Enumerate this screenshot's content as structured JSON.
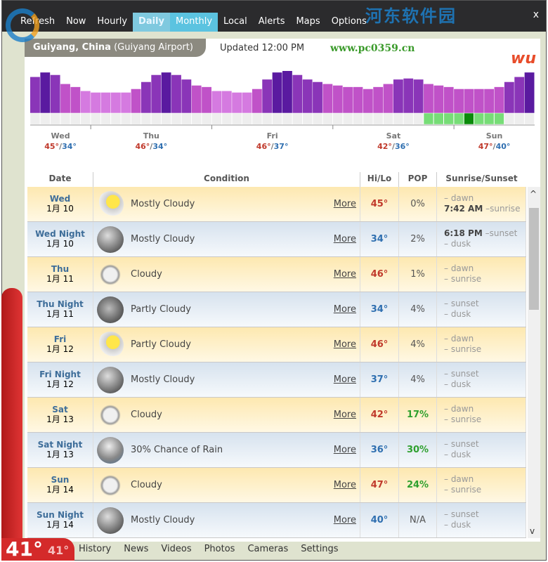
{
  "nav": {
    "items": [
      "Refresh",
      "Now",
      "Hourly",
      "Daily",
      "Monthly",
      "Local",
      "Alerts",
      "Maps",
      "Options"
    ],
    "active": "Monthly",
    "close": "x"
  },
  "watermark": {
    "text": "河东软件园",
    "url": "www.pc0359.cn"
  },
  "location": {
    "city": "Guiyang, China",
    "station": "(Guiyang Airport)",
    "updated": "Updated 12:00 PM",
    "logo": "wu"
  },
  "chart_data": {
    "type": "bar",
    "temperature_levels": [
      72,
      81,
      76,
      58,
      52,
      44,
      41,
      41,
      41,
      41,
      48,
      62,
      76,
      81,
      76,
      67,
      55,
      52,
      44,
      44,
      41,
      41,
      48,
      67,
      81,
      84,
      76,
      67,
      62,
      58,
      55,
      52,
      52,
      48,
      52,
      58,
      67,
      69,
      67,
      58,
      55,
      52,
      48,
      48,
      48,
      48,
      52,
      62,
      72,
      81
    ],
    "precip_levels": [
      0,
      0,
      0,
      0,
      0,
      0,
      0,
      0,
      0,
      0,
      0,
      0,
      0,
      0,
      0,
      0,
      0,
      0,
      0,
      0,
      0,
      0,
      0,
      0,
      0,
      0,
      0,
      0,
      0,
      0,
      0,
      0,
      0,
      0,
      0,
      0,
      0,
      0,
      0,
      1,
      1,
      1,
      1,
      2,
      1,
      1,
      1,
      0,
      0,
      0
    ],
    "days": [
      {
        "name": "Wed",
        "hi": "45°",
        "lo": "34°"
      },
      {
        "name": "Thu",
        "hi": "46°",
        "lo": "34°"
      },
      {
        "name": "Fri",
        "hi": "46°",
        "lo": "37°"
      },
      {
        "name": "Sat",
        "hi": "42°",
        "lo": "36°"
      },
      {
        "name": "Sun",
        "hi": "47°",
        "lo": "40°"
      }
    ],
    "colors": {
      "high": "#5a1aa0",
      "mid": "#c052c8",
      "low": "#d57ae0",
      "rain": "#77dd77",
      "rain_heavy": "#0a8a0a",
      "hi": "#c0392b",
      "lo": "#2f6fb0"
    }
  },
  "table": {
    "headers": [
      "Date",
      "Condition",
      "Hi/Lo",
      "POP",
      "Sunrise/Sunset"
    ],
    "more": "More",
    "rows": [
      {
        "kind": "day",
        "day": "Wed",
        "date": "1月 10",
        "icon": "sunny",
        "cond": "Mostly Cloudy",
        "temp": "45°",
        "pop": "0%",
        "sun1": "– dawn",
        "sun2t": "7:42 AM",
        "sun2": " –sunrise"
      },
      {
        "kind": "night",
        "day": "Wed Night",
        "date": "1月 10",
        "icon": "night",
        "cond": "Mostly Cloudy",
        "temp": "34°",
        "pop": "2%",
        "sun1t": "6:18 PM",
        "sun1": " –sunset",
        "sun2": "– dusk"
      },
      {
        "kind": "day",
        "day": "Thu",
        "date": "1月 11",
        "icon": "cloud",
        "cond": "Cloudy",
        "temp": "46°",
        "pop": "1%",
        "sun1": "– dawn",
        "sun2": "– sunrise"
      },
      {
        "kind": "night",
        "day": "Thu Night",
        "date": "1月 11",
        "icon": "moon",
        "cond": "Partly Cloudy",
        "temp": "34°",
        "pop": "4%",
        "sun1": "– sunset",
        "sun2": "– dusk"
      },
      {
        "kind": "day",
        "day": "Fri",
        "date": "1月 12",
        "icon": "sunny",
        "cond": "Partly Cloudy",
        "temp": "46°",
        "pop": "4%",
        "sun1": "– dawn",
        "sun2": "– sunrise"
      },
      {
        "kind": "night",
        "day": "Fri Night",
        "date": "1月 12",
        "icon": "night",
        "cond": "Mostly Cloudy",
        "temp": "37°",
        "pop": "4%",
        "sun1": "– sunset",
        "sun2": "– dusk"
      },
      {
        "kind": "day",
        "day": "Sat",
        "date": "1月 13",
        "icon": "cloud",
        "cond": "Cloudy",
        "temp": "42°",
        "pop": "17%",
        "sun1": "– dawn",
        "sun2": "– sunrise"
      },
      {
        "kind": "night",
        "day": "Sat Night",
        "date": "1月 13",
        "icon": "rain",
        "cond": "30% Chance of Rain",
        "temp": "36°",
        "pop": "30%",
        "sun1": "– sunset",
        "sun2": "– dusk"
      },
      {
        "kind": "day",
        "day": "Sun",
        "date": "1月 14",
        "icon": "cloud",
        "cond": "Cloudy",
        "temp": "47°",
        "pop": "24%",
        "sun1": "– dawn",
        "sun2": "– sunrise"
      },
      {
        "kind": "night",
        "day": "Sun Night",
        "date": "1月 14",
        "icon": "night",
        "cond": "Mostly Cloudy",
        "temp": "40°",
        "pop": "N/A",
        "sun1": "– sunset",
        "sun2": "– dusk"
      }
    ]
  },
  "bottom": {
    "items": [
      "History",
      "News",
      "Videos",
      "Photos",
      "Cameras",
      "Settings"
    ]
  },
  "current": {
    "temp": "41°",
    "feels": "41°"
  }
}
